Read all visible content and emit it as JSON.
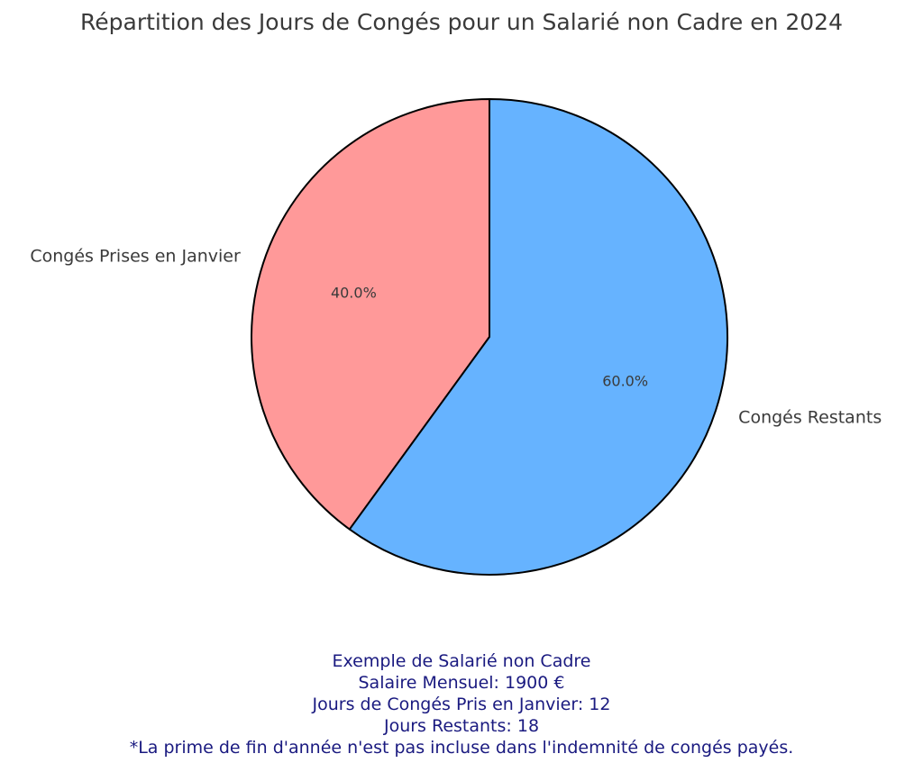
{
  "chart_data": {
    "type": "pie",
    "title": "Répartition des Jours de Congés pour un Salarié non Cadre en 2024",
    "slices": [
      {
        "label": "Congés Prises en Janvier",
        "value": 12,
        "pct_label": "40.0%",
        "color": "#ff9999"
      },
      {
        "label": "Congés Restants",
        "value": 18,
        "pct_label": "60.0%",
        "color": "#66b3ff"
      }
    ],
    "start_angle_deg": 90,
    "direction": "counterclockwise",
    "edge_color": "#000000",
    "legend": "none"
  },
  "annotation": {
    "lines": [
      "Exemple de Salarié non Cadre",
      "Salaire Mensuel: 1900 €",
      "Jours de Congés Pris en Janvier: 12",
      "Jours Restants: 18",
      "*La prime de fin d'année n'est pas incluse dans l'indemnité de congés payés."
    ],
    "color": "#1a1a80"
  }
}
